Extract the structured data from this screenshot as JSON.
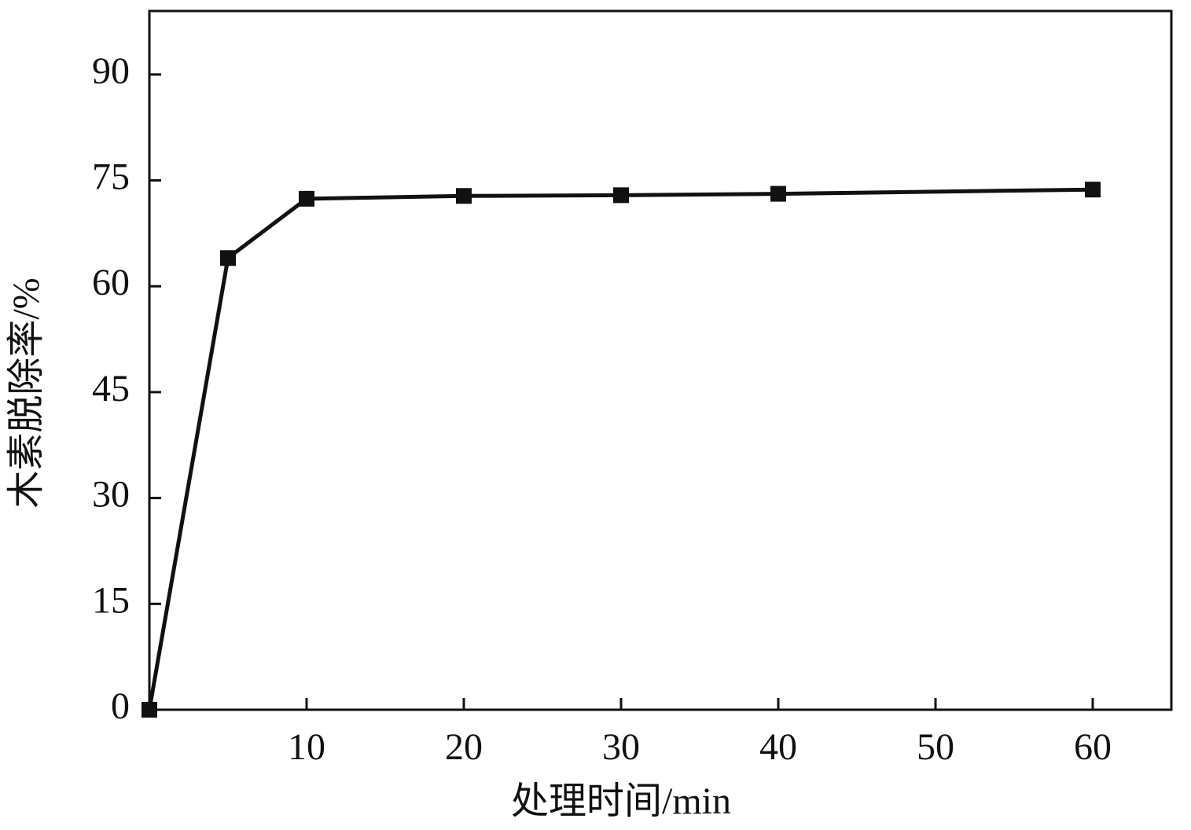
{
  "chart_data": {
    "type": "line",
    "xlabel": "处理时间/min",
    "ylabel": "木素脱除率/%",
    "x": [
      0,
      5,
      10,
      20,
      30,
      40,
      60
    ],
    "values": [
      0,
      64,
      72.4,
      72.8,
      72.9,
      73.1,
      73.7
    ],
    "color": "#111111",
    "xlim": [
      0,
      65
    ],
    "xticks": [
      10,
      20,
      30,
      40,
      50,
      60
    ],
    "ylim": [
      0,
      99
    ],
    "yticks": [
      0,
      15,
      30,
      45,
      60,
      75,
      90
    ]
  }
}
